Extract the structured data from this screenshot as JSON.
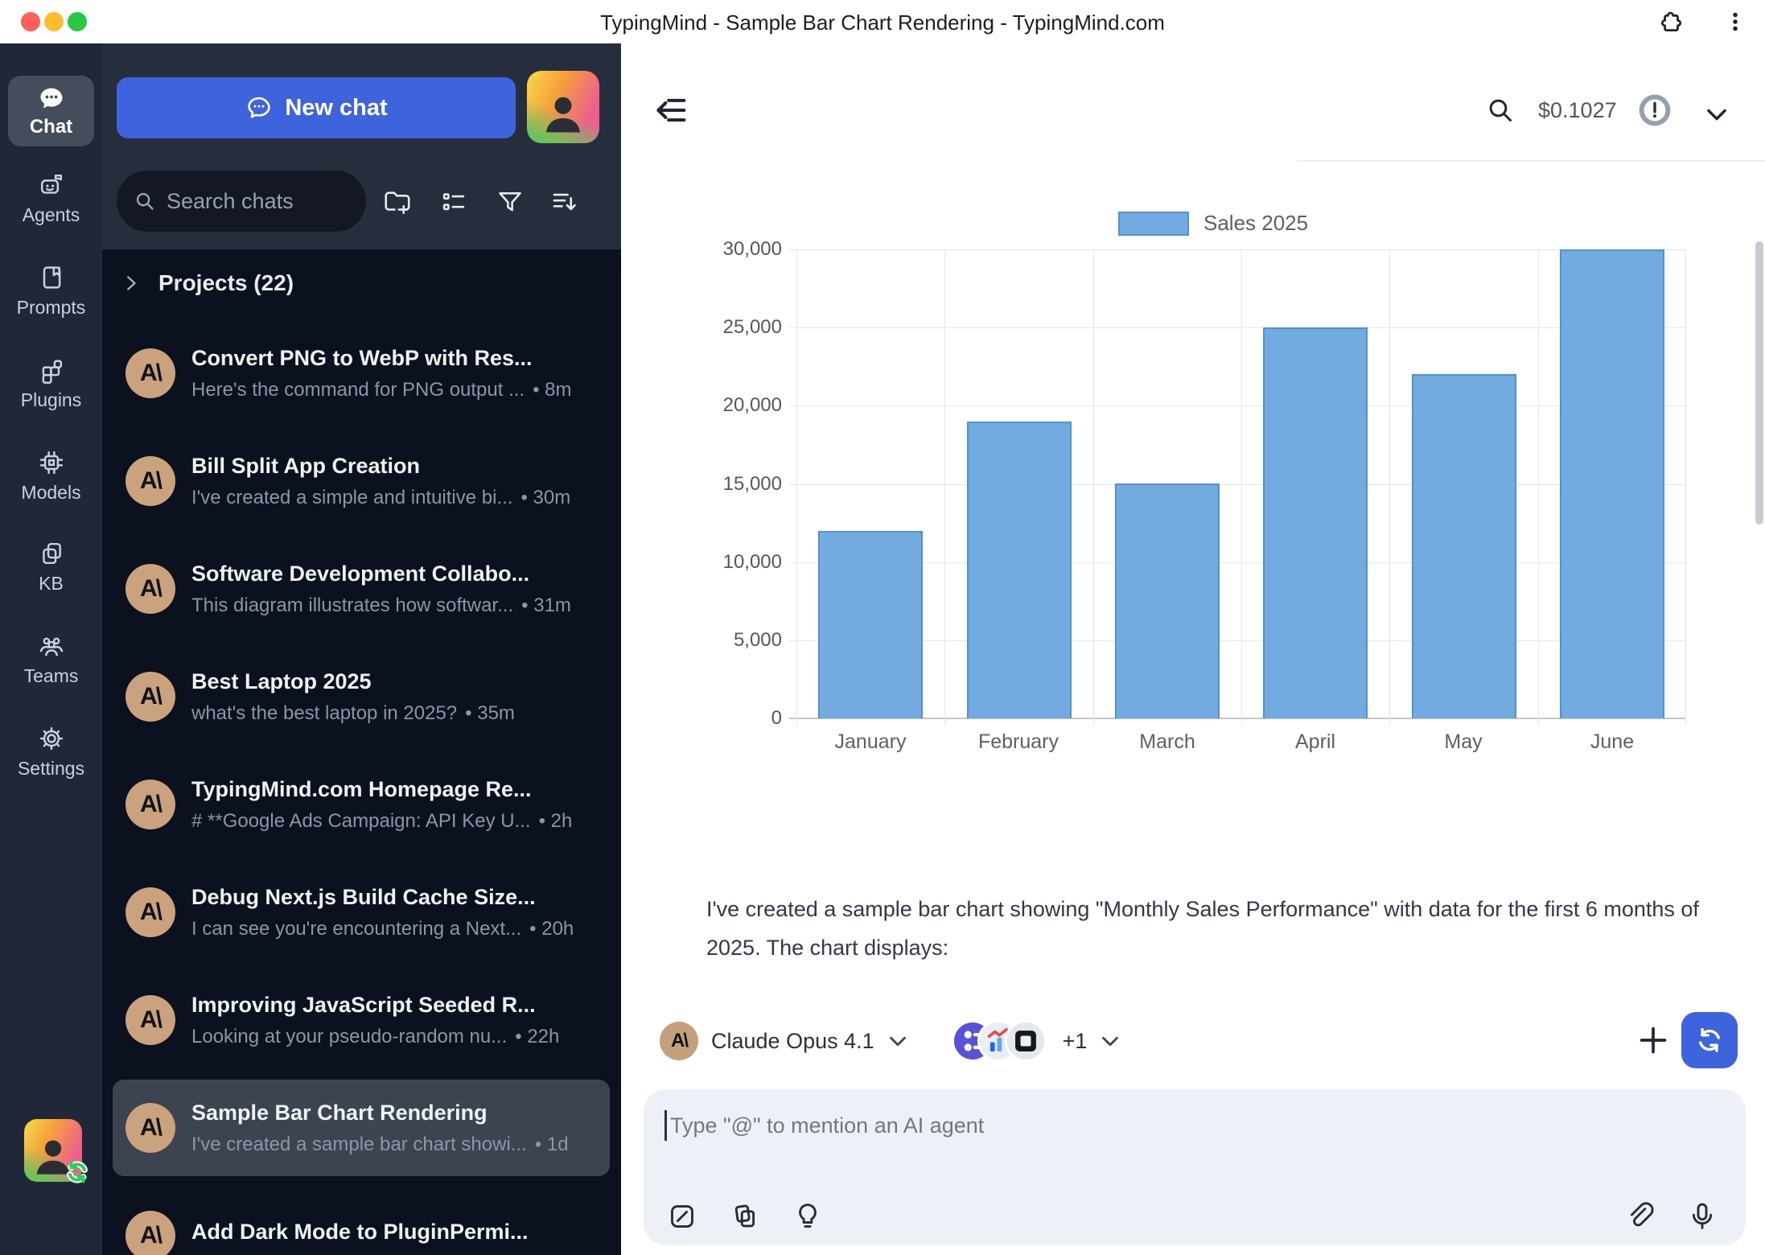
{
  "window": {
    "title": "TypingMind - Sample Bar Chart Rendering - TypingMind.com"
  },
  "nav_rail": {
    "items": [
      {
        "label": "Chat",
        "active": true
      },
      {
        "label": "Agents"
      },
      {
        "label": "Prompts"
      },
      {
        "label": "Plugins"
      },
      {
        "label": "Models"
      },
      {
        "label": "KB"
      },
      {
        "label": "Teams"
      },
      {
        "label": "Settings"
      }
    ]
  },
  "sidebar": {
    "new_chat_label": "New chat",
    "search_placeholder": "Search chats",
    "projects_label": "Projects (22)",
    "avatar_glyph": "A\\",
    "chats": [
      {
        "title": "Convert PNG to WebP with Res...",
        "preview": "Here's the command for PNG output ...",
        "time": "• 8m"
      },
      {
        "title": "Bill Split App Creation",
        "preview": "I've created a simple and intuitive bi...",
        "time": "• 30m"
      },
      {
        "title": "Software Development Collabo...",
        "preview": "This diagram illustrates how softwar...",
        "time": "• 31m"
      },
      {
        "title": "Best Laptop 2025",
        "preview": "what's the best laptop in 2025?",
        "time": "• 35m"
      },
      {
        "title": "TypingMind.com Homepage Re...",
        "preview": "# **Google Ads Campaign: API Key U...",
        "time": "• 2h"
      },
      {
        "title": "Debug Next.js Build Cache Size...",
        "preview": "I can see you're encountering a Next...",
        "time": "• 20h"
      },
      {
        "title": "Improving JavaScript Seeded R...",
        "preview": "Looking at your pseudo-random nu...",
        "time": "• 22h"
      },
      {
        "title": "Sample Bar Chart Rendering",
        "preview": "I've created a sample bar chart showi...",
        "time": "• 1d",
        "selected": true
      },
      {
        "title": "Add Dark Mode to PluginPermi...",
        "preview": "",
        "time": ""
      }
    ]
  },
  "header": {
    "cost": "$0.1027"
  },
  "chart_data": {
    "type": "bar",
    "categories": [
      "January",
      "February",
      "March",
      "April",
      "May",
      "June"
    ],
    "series": [
      {
        "name": "Sales 2025",
        "values": [
          12000,
          19000,
          15000,
          25000,
          22000,
          30000
        ]
      }
    ],
    "title": "",
    "xlabel": "",
    "ylabel": "",
    "ylim": [
      0,
      30000
    ],
    "ytick_step": 5000,
    "grid": true,
    "legend_position": "top",
    "bar_fill": "#73abe1",
    "bar_border": "#4e93d2"
  },
  "message": {
    "text": "I've created a sample bar chart showing \"Monthly Sales Performance\" with data for the first 6 months of 2025. The chart displays:"
  },
  "composer": {
    "model_name": "Claude Opus 4.1",
    "plugins_overflow": "+1",
    "placeholder": "Type \"@\" to mention an AI agent"
  }
}
